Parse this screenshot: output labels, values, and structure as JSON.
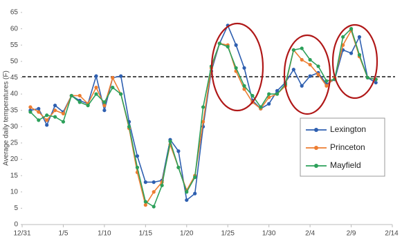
{
  "chart_data": {
    "type": "line",
    "y_label": "Average daily temperatures (F)",
    "x": [
      1,
      2,
      3,
      4,
      5,
      6,
      7,
      8,
      9,
      10,
      11,
      12,
      13,
      14,
      15,
      16,
      17,
      18,
      19,
      20,
      21,
      22,
      23,
      24,
      25,
      26,
      27,
      28,
      29,
      30,
      31,
      32,
      33,
      34,
      35,
      36,
      37,
      38,
      39,
      40,
      41,
      42,
      43
    ],
    "xlim": [
      0,
      45
    ],
    "xticks": [
      {
        "value": 0,
        "label": "12/31"
      },
      {
        "value": 5,
        "label": "1/5"
      },
      {
        "value": 10,
        "label": "1/10"
      },
      {
        "value": 15,
        "label": "1/15"
      },
      {
        "value": 20,
        "label": "1/20"
      },
      {
        "value": 25,
        "label": "1/25"
      },
      {
        "value": 30,
        "label": "1/30"
      },
      {
        "value": 35,
        "label": "2/4"
      },
      {
        "value": 40,
        "label": "2/9"
      },
      {
        "value": 45,
        "label": "2/14"
      }
    ],
    "ylim": [
      0,
      65
    ],
    "yticks": [
      0,
      5,
      10,
      15,
      20,
      25,
      30,
      35,
      40,
      45,
      50,
      55,
      60,
      65
    ],
    "reference_line": 45.3,
    "series": [
      {
        "name": "Lexington",
        "color": "#2e5fb0",
        "values": [
          35,
          35.5,
          30.5,
          36.5,
          34.5,
          39.5,
          38,
          37,
          45.5,
          35,
          45,
          45.5,
          31.5,
          21,
          13,
          13,
          13.5,
          26,
          22.5,
          7.5,
          9.5,
          30,
          47,
          55.5,
          61,
          55,
          48,
          38,
          35.5,
          37,
          41,
          43.5,
          47.5,
          42.5,
          45.5,
          46.5,
          43,
          44.5,
          53.5,
          52.5,
          57.5,
          45,
          43.5
        ]
      },
      {
        "name": "Princeton",
        "color": "#ed7d31",
        "values": [
          36,
          34.5,
          32,
          35,
          34,
          39.5,
          39.5,
          37,
          42,
          36.5,
          45,
          40,
          29.5,
          16,
          6,
          10,
          13,
          24.5,
          17.5,
          10.5,
          15,
          31.5,
          48,
          55.5,
          55,
          47,
          41.5,
          37.5,
          35.5,
          39,
          40,
          42.5,
          53.5,
          50.5,
          49,
          46,
          42.5,
          45,
          55,
          59.5,
          51.5,
          45,
          44.5
        ]
      },
      {
        "name": "Mayfield",
        "color": "#2ca05a",
        "values": [
          34.5,
          32,
          33.5,
          33,
          31.5,
          39.5,
          37.5,
          36.5,
          40,
          37.5,
          42,
          40,
          30,
          17.5,
          7,
          5.5,
          12,
          25.5,
          17.5,
          10,
          14.5,
          36,
          48.5,
          55.5,
          54.5,
          48,
          42.5,
          39.5,
          36,
          40,
          40,
          43,
          53.5,
          54,
          50.5,
          48.5,
          44,
          44.5,
          57.5,
          60,
          52,
          45,
          44.5
        ]
      }
    ]
  }
}
